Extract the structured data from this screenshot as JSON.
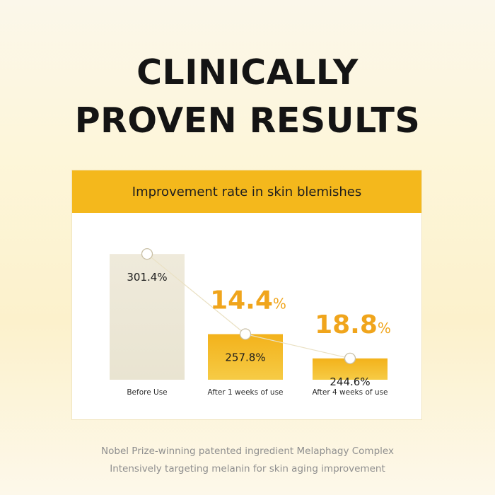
{
  "heading": {
    "line1": "CLINICALLY",
    "line2": "PROVEN RESULTS"
  },
  "colors": {
    "accent": "#f4b81c",
    "baseline_bar_top": "#efeadb",
    "baseline_bar_bottom": "#e9e4d1",
    "result_bar_top": "#f3b21b",
    "result_bar_bottom": "#f6cb45",
    "improvement_text": "#f0a51c",
    "trend_line": "#eae1c4"
  },
  "chart_data": {
    "type": "bar",
    "title": "Improvement rate in skin blemishes",
    "categories": [
      "Before Use",
      "After 1 weeks of use",
      "After 4 weeks of use"
    ],
    "values": [
      301.4,
      257.8,
      244.6
    ],
    "value_labels": [
      "301.4%",
      "257.8%",
      "244.6%"
    ],
    "unit": "%",
    "improvements": [
      {
        "category_index": 1,
        "value": "14.4",
        "unit": "%"
      },
      {
        "category_index": 2,
        "value": "18.8",
        "unit": "%"
      }
    ],
    "trend_markers": true,
    "grid": false
  },
  "footer": {
    "line1": "Nobel Prize-winning patented ingredient Melaphagy Complex",
    "line2": "Intensively targeting melanin for skin aging improvement"
  }
}
